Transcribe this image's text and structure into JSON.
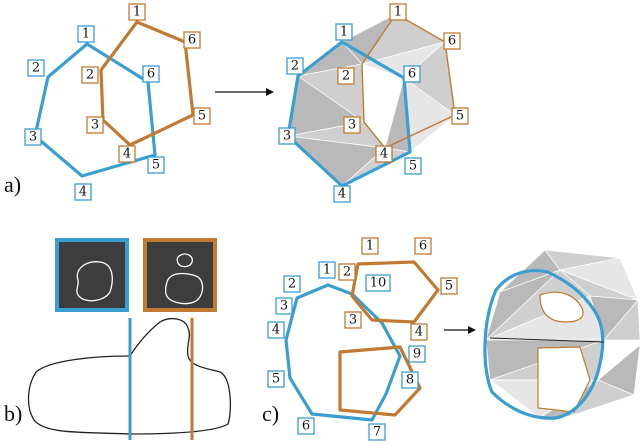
{
  "panels": {
    "a": "a)",
    "b": "b)",
    "c": "c)"
  },
  "labels_a_left_blue": [
    "1",
    "2",
    "3",
    "4",
    "5",
    "6"
  ],
  "labels_a_left_orange": [
    "1",
    "2",
    "3",
    "4",
    "5",
    "6"
  ],
  "labels_a_right_blue": [
    "1",
    "2",
    "3",
    "4",
    "5",
    "6"
  ],
  "labels_a_right_orange": [
    "1",
    "2",
    "3",
    "4",
    "5",
    "6"
  ],
  "labels_c_blue": [
    "1",
    "2",
    "3",
    "4",
    "5",
    "6",
    "7",
    "8",
    "9",
    "10"
  ],
  "labels_c_orange": [
    "1",
    "2",
    "3",
    "4",
    "5",
    "6"
  ],
  "colors": {
    "blue": "#3a9fd0",
    "orange": "#c17a32",
    "dark_panel": "#3d3d3d"
  }
}
